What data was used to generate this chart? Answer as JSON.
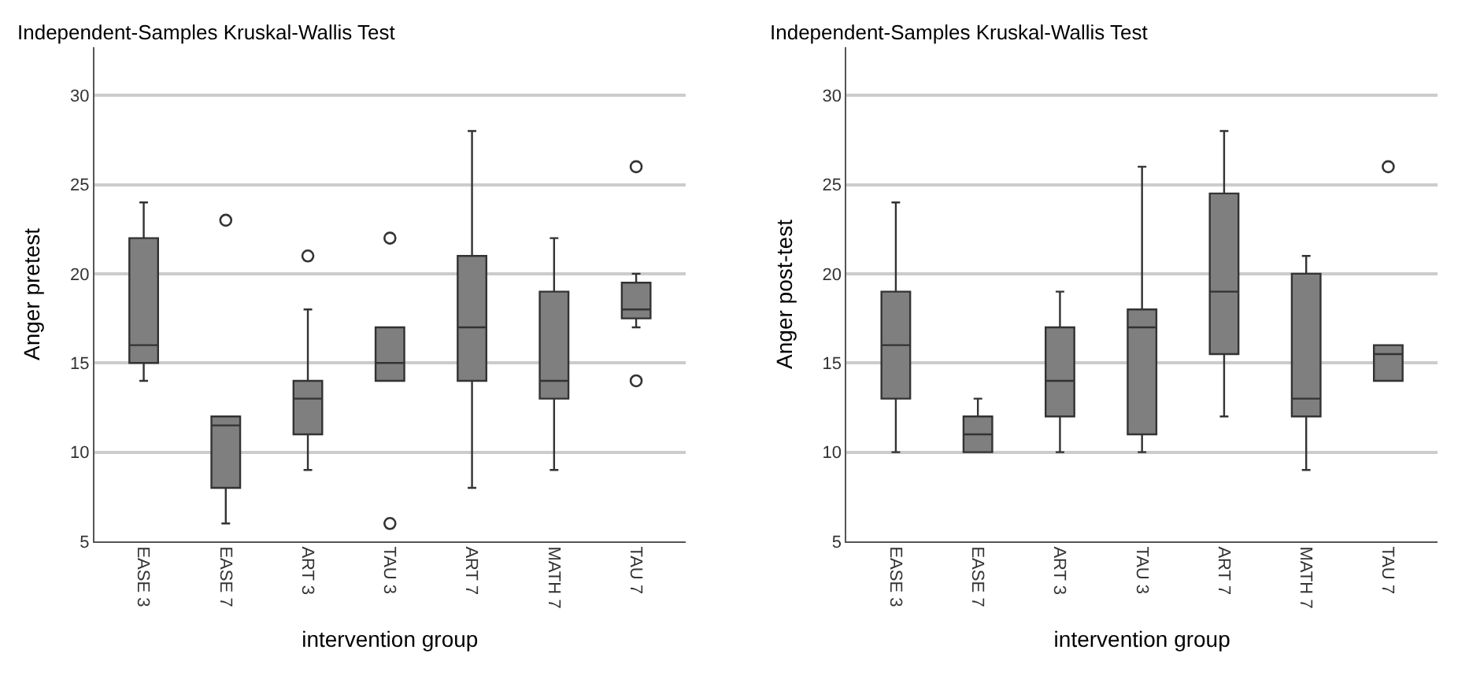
{
  "chart_data": [
    {
      "type": "box",
      "title": "Independent-Samples Kruskal-Wallis Test",
      "xlabel": "intervention group",
      "ylabel": "Anger pretest",
      "categories": [
        "EASE 3",
        "EASE 7",
        "ART 3",
        "TAU 3",
        "ART 7",
        "MATH 7",
        "TAU 7"
      ],
      "ylim": [
        5,
        32.7
      ],
      "yticks": [
        5,
        10,
        15,
        20,
        25,
        30
      ],
      "grid": "y",
      "marker": "circle",
      "series": [
        {
          "color": "#7f7f7f",
          "boxes": [
            {
              "low": 14,
              "q1": 15,
              "median": 16,
              "q3": 22,
              "high": 24
            },
            {
              "low": 6,
              "q1": 8,
              "median": 11.5,
              "q3": 12,
              "high": 12,
              "outliers": [
                23
              ]
            },
            {
              "low": 9,
              "q1": 11,
              "median": 13,
              "q3": 14,
              "high": 18,
              "outliers": [
                21
              ]
            },
            {
              "low": 14,
              "q1": 14,
              "median": 15,
              "q3": 17,
              "high": 17,
              "outliers": [
                22,
                6
              ]
            },
            {
              "low": 8,
              "q1": 14,
              "median": 17,
              "q3": 21,
              "high": 28
            },
            {
              "low": 9,
              "q1": 13,
              "median": 14,
              "q3": 19,
              "high": 22
            },
            {
              "low": 17,
              "q1": 17.5,
              "median": 18,
              "q3": 19.5,
              "high": 20,
              "outliers": [
                14,
                26
              ]
            }
          ]
        }
      ]
    },
    {
      "type": "box",
      "title": "Independent-Samples Kruskal-Wallis Test",
      "xlabel": "intervention group",
      "ylabel": "Anger post-test",
      "categories": [
        "EASE 3",
        "EASE 7",
        "ART 3",
        "TAU 3",
        "ART 7",
        "MATH 7",
        "TAU 7"
      ],
      "ylim": [
        5,
        32.7
      ],
      "yticks": [
        5,
        10,
        15,
        20,
        25,
        30
      ],
      "grid": "y",
      "marker": "circle",
      "series": [
        {
          "color": "#7f7f7f",
          "boxes": [
            {
              "low": 10,
              "q1": 13,
              "median": 16,
              "q3": 19,
              "high": 24
            },
            {
              "low": 10,
              "q1": 10,
              "median": 11,
              "q3": 12,
              "high": 13
            },
            {
              "low": 10,
              "q1": 12,
              "median": 14,
              "q3": 17,
              "high": 19
            },
            {
              "low": 10,
              "q1": 11,
              "median": 17,
              "q3": 18,
              "high": 26
            },
            {
              "low": 12,
              "q1": 15.5,
              "median": 19,
              "q3": 24.5,
              "high": 28
            },
            {
              "low": 9,
              "q1": 12,
              "median": 13,
              "q3": 20,
              "high": 21
            },
            {
              "low": 14,
              "q1": 14,
              "median": 15.5,
              "q3": 16,
              "high": 16,
              "outliers": [
                26
              ]
            }
          ]
        }
      ]
    }
  ]
}
